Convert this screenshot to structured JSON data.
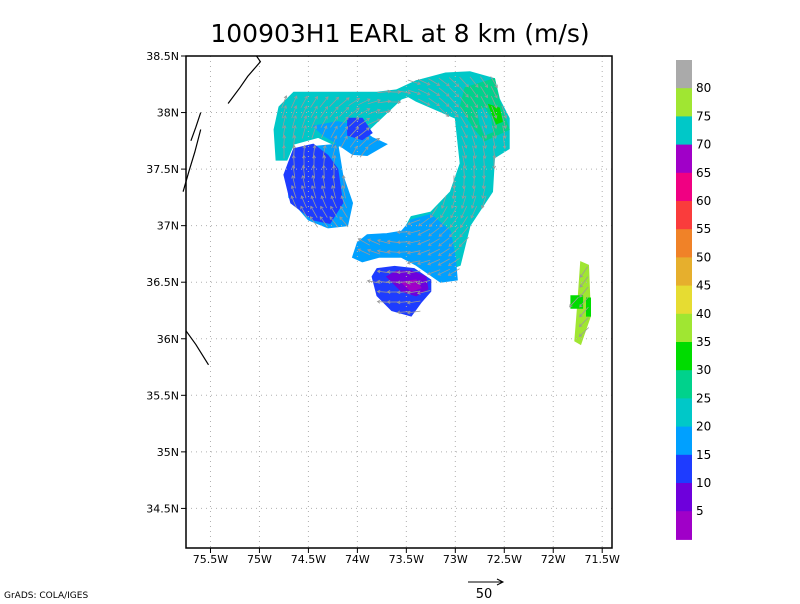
{
  "credit": "GrADS: COLA/IGES",
  "chart_data": {
    "type": "heatmap",
    "title": "100903H1 EARL at 8 km (m/s)",
    "xlabel": "",
    "ylabel": "",
    "xlim": [
      -75.75,
      -71.4
    ],
    "ylim": [
      34.15,
      38.5
    ],
    "x_ticks": [
      {
        "value": -75.5,
        "label": "75.5W"
      },
      {
        "value": -75.0,
        "label": "75W"
      },
      {
        "value": -74.5,
        "label": "74.5W"
      },
      {
        "value": -74.0,
        "label": "74W"
      },
      {
        "value": -73.5,
        "label": "73.5W"
      },
      {
        "value": -73.0,
        "label": "73W"
      },
      {
        "value": -72.5,
        "label": "72.5W"
      },
      {
        "value": -72.0,
        "label": "72W"
      },
      {
        "value": -71.5,
        "label": "71.5W"
      }
    ],
    "y_ticks": [
      {
        "value": 34.5,
        "label": "34.5N"
      },
      {
        "value": 35.0,
        "label": "35N"
      },
      {
        "value": 35.5,
        "label": "35.5N"
      },
      {
        "value": 36.0,
        "label": "36N"
      },
      {
        "value": 36.5,
        "label": "36.5N"
      },
      {
        "value": 37.0,
        "label": "37N"
      },
      {
        "value": 37.5,
        "label": "37.5N"
      },
      {
        "value": 38.0,
        "label": "38N"
      },
      {
        "value": 38.5,
        "label": "38.5N"
      }
    ],
    "grid": true,
    "colorbar": {
      "labels": [
        "5",
        "10",
        "15",
        "20",
        "25",
        "30",
        "35",
        "40",
        "45",
        "50",
        "55",
        "60",
        "65",
        "70",
        "75",
        "80"
      ],
      "colors": [
        "#a000c8",
        "#6e00dc",
        "#1e3cff",
        "#00a0ff",
        "#00c8c8",
        "#00d28c",
        "#00dc00",
        "#a0e632",
        "#e6dc32",
        "#e6af2d",
        "#f08228",
        "#fa3c3c",
        "#f00082",
        "#a000c8",
        "#00c8c8",
        "#a0e632",
        "#aaaaaa"
      ]
    },
    "vector_reference": {
      "value": 50,
      "label": "50"
    },
    "coastline": [
      [
        [
          -75.03,
          38.5
        ],
        [
          -74.99,
          38.45
        ],
        [
          -75.12,
          38.32
        ],
        [
          -75.2,
          38.22
        ],
        [
          -75.32,
          38.08
        ]
      ],
      [
        [
          -75.6,
          38.0
        ],
        [
          -75.65,
          37.87
        ],
        [
          -75.7,
          37.75
        ]
      ],
      [
        [
          -75.6,
          37.85
        ],
        [
          -75.66,
          37.65
        ],
        [
          -75.72,
          37.48
        ],
        [
          -75.78,
          37.3
        ]
      ],
      [
        [
          -75.75,
          36.07
        ],
        [
          -75.65,
          35.95
        ],
        [
          -75.52,
          35.77
        ]
      ]
    ],
    "wind_speed_regions": [
      {
        "speed": 25,
        "points": [
          [
            -74.8,
            38.05
          ],
          [
            -74.65,
            38.18
          ],
          [
            -74.35,
            38.18
          ],
          [
            -73.8,
            38.18
          ],
          [
            -73.6,
            38.2
          ],
          [
            -73.4,
            38.28
          ],
          [
            -73.2,
            38.32
          ],
          [
            -73.15,
            38.24
          ],
          [
            -73.55,
            38.12
          ],
          [
            -74.0,
            37.75
          ],
          [
            -74.2,
            37.7
          ],
          [
            -74.4,
            37.78
          ],
          [
            -74.65,
            37.72
          ],
          [
            -74.72,
            37.58
          ],
          [
            -74.83,
            37.58
          ],
          [
            -74.85,
            37.85
          ]
        ]
      },
      {
        "speed": 20,
        "points": [
          [
            -74.45,
            37.88
          ],
          [
            -74.2,
            37.92
          ],
          [
            -74.0,
            37.88
          ],
          [
            -73.85,
            37.78
          ],
          [
            -73.7,
            37.72
          ],
          [
            -73.9,
            37.62
          ],
          [
            -74.05,
            37.63
          ],
          [
            -74.2,
            37.72
          ],
          [
            -74.35,
            37.8
          ]
        ]
      },
      {
        "speed": 25,
        "points": [
          [
            -73.4,
            38.28
          ],
          [
            -73.1,
            38.35
          ],
          [
            -72.85,
            38.36
          ],
          [
            -72.6,
            38.3
          ],
          [
            -72.55,
            38.12
          ],
          [
            -72.45,
            37.95
          ],
          [
            -72.45,
            37.68
          ],
          [
            -72.6,
            37.6
          ],
          [
            -72.62,
            37.3
          ],
          [
            -72.85,
            37.0
          ],
          [
            -72.95,
            36.65
          ],
          [
            -73.1,
            36.6
          ],
          [
            -73.35,
            36.72
          ],
          [
            -73.45,
            36.85
          ],
          [
            -73.55,
            36.92
          ],
          [
            -73.45,
            37.08
          ],
          [
            -73.25,
            37.12
          ],
          [
            -73.05,
            37.3
          ],
          [
            -72.95,
            37.55
          ],
          [
            -73.0,
            37.95
          ],
          [
            -73.4,
            38.1
          ],
          [
            -73.6,
            38.2
          ]
        ]
      },
      {
        "speed": 30,
        "points": [
          [
            -72.9,
            38.22
          ],
          [
            -72.6,
            38.3
          ],
          [
            -72.55,
            38.1
          ],
          [
            -72.45,
            37.85
          ],
          [
            -72.7,
            37.75
          ],
          [
            -72.8,
            37.85
          ],
          [
            -72.95,
            38.05
          ]
        ]
      },
      {
        "speed": 25,
        "points": [
          [
            -72.77,
            38.02
          ],
          [
            -72.7,
            38.04
          ],
          [
            -72.64,
            37.95
          ],
          [
            -72.62,
            37.83
          ],
          [
            -72.7,
            37.8
          ],
          [
            -72.75,
            37.9
          ]
        ]
      },
      {
        "speed": 35,
        "points": [
          [
            -72.66,
            38.07
          ],
          [
            -72.55,
            38.04
          ],
          [
            -72.52,
            37.92
          ],
          [
            -72.58,
            37.9
          ],
          [
            -72.62,
            37.98
          ]
        ]
      },
      {
        "speed": 20,
        "points": [
          [
            -73.45,
            37.05
          ],
          [
            -73.25,
            37.1
          ],
          [
            -73.05,
            36.95
          ],
          [
            -73.0,
            36.72
          ],
          [
            -72.98,
            36.52
          ],
          [
            -73.15,
            36.5
          ],
          [
            -73.4,
            36.65
          ],
          [
            -73.55,
            36.72
          ],
          [
            -73.78,
            36.72
          ],
          [
            -73.95,
            36.68
          ],
          [
            -74.05,
            36.72
          ],
          [
            -74.0,
            36.85
          ],
          [
            -73.9,
            36.92
          ],
          [
            -73.7,
            36.93
          ],
          [
            -73.55,
            36.95
          ]
        ]
      },
      {
        "speed": 20,
        "points": [
          [
            -74.45,
            37.7
          ],
          [
            -74.2,
            37.72
          ],
          [
            -74.15,
            37.45
          ],
          [
            -74.05,
            37.2
          ],
          [
            -74.1,
            37.0
          ],
          [
            -74.3,
            36.98
          ],
          [
            -74.5,
            37.05
          ],
          [
            -74.7,
            37.25
          ],
          [
            -74.72,
            37.5
          ]
        ]
      },
      {
        "speed": 15,
        "points": [
          [
            -74.65,
            37.68
          ],
          [
            -74.45,
            37.72
          ],
          [
            -74.3,
            37.62
          ],
          [
            -74.2,
            37.5
          ],
          [
            -74.15,
            37.2
          ],
          [
            -74.28,
            37.02
          ],
          [
            -74.45,
            37.05
          ],
          [
            -74.68,
            37.2
          ],
          [
            -74.75,
            37.45
          ]
        ]
      },
      {
        "speed": 15,
        "points": [
          [
            -74.1,
            37.95
          ],
          [
            -73.95,
            37.95
          ],
          [
            -73.85,
            37.82
          ],
          [
            -73.95,
            37.76
          ],
          [
            -74.1,
            37.8
          ]
        ]
      },
      {
        "speed": 15,
        "points": [
          [
            -73.85,
            36.55
          ],
          [
            -73.8,
            36.38
          ],
          [
            -73.65,
            36.25
          ],
          [
            -73.45,
            36.2
          ],
          [
            -73.35,
            36.32
          ],
          [
            -73.25,
            36.42
          ],
          [
            -73.25,
            36.52
          ],
          [
            -73.42,
            36.62
          ],
          [
            -73.62,
            36.64
          ],
          [
            -73.8,
            36.62
          ]
        ]
      },
      {
        "speed": 10,
        "points": [
          [
            -73.7,
            36.55
          ],
          [
            -73.55,
            36.42
          ],
          [
            -73.4,
            36.38
          ],
          [
            -73.28,
            36.44
          ],
          [
            -73.3,
            36.55
          ],
          [
            -73.45,
            36.6
          ],
          [
            -73.6,
            36.6
          ]
        ]
      },
      {
        "speed": 5,
        "points": [
          [
            -73.55,
            36.5
          ],
          [
            -73.45,
            36.42
          ],
          [
            -73.35,
            36.45
          ],
          [
            -73.4,
            36.52
          ]
        ]
      },
      {
        "speed": 40,
        "points": [
          [
            -71.72,
            36.68
          ],
          [
            -71.64,
            36.65
          ],
          [
            -71.62,
            36.2
          ],
          [
            -71.7,
            36.0
          ],
          [
            -71.72,
            35.95
          ],
          [
            -71.78,
            35.98
          ],
          [
            -71.75,
            36.3
          ]
        ]
      },
      {
        "speed": 35,
        "points": [
          [
            -71.82,
            36.38
          ],
          [
            -71.7,
            36.38
          ],
          [
            -71.7,
            36.27
          ],
          [
            -71.82,
            36.27
          ]
        ]
      },
      {
        "speed": 35,
        "points": [
          [
            -71.66,
            36.36
          ],
          [
            -71.62,
            36.36
          ],
          [
            -71.62,
            36.2
          ],
          [
            -71.66,
            36.2
          ]
        ]
      }
    ]
  }
}
